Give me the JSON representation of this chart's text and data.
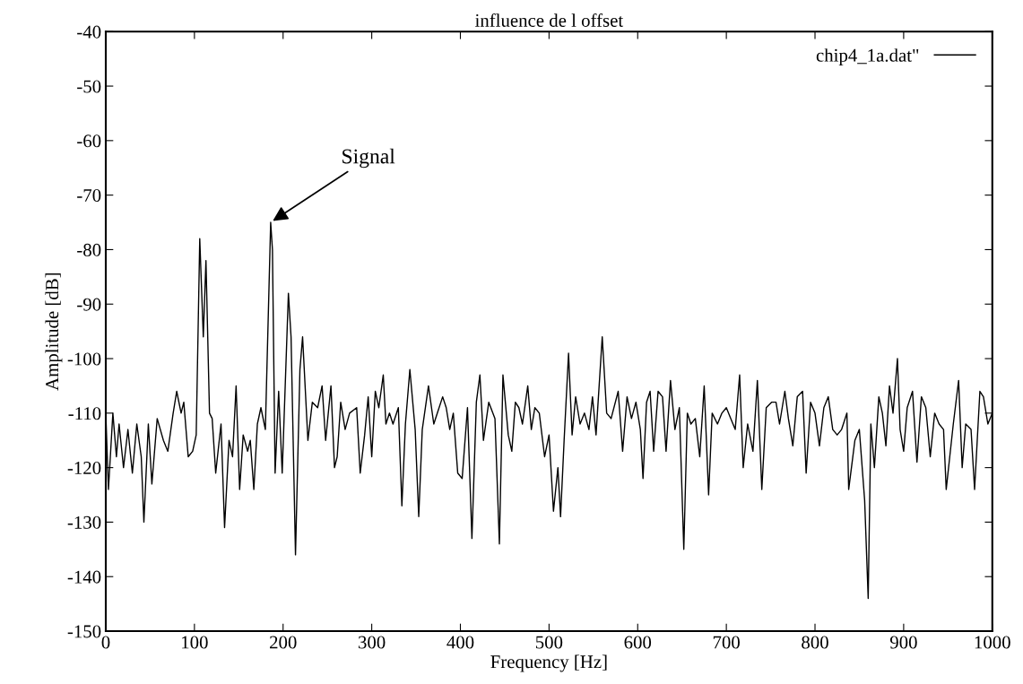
{
  "chart_data": {
    "type": "line",
    "title": "influence de l offset",
    "xlabel": "Frequency [Hz]",
    "ylabel": "Amplitude [dB]",
    "xlim": [
      0,
      1000
    ],
    "xticks": [
      0,
      100,
      200,
      300,
      400,
      500,
      600,
      700,
      800,
      900,
      1000
    ],
    "ylim": [
      -150,
      -40
    ],
    "yticks": [
      -150,
      -140,
      -130,
      -120,
      -110,
      -100,
      -90,
      -80,
      -70,
      -60,
      -50,
      -40
    ],
    "grid": false,
    "legend": "top right",
    "marker": "none",
    "line_style": "solid",
    "annotations": [
      {
        "text": "Signal",
        "x": 186,
        "y": -75
      }
    ],
    "series": [
      {
        "name": "chip4_1a.dat\"",
        "color": "#000000",
        "x": [
          0,
          3,
          8,
          12,
          15,
          20,
          25,
          30,
          35,
          40,
          43,
          48,
          52,
          58,
          65,
          70,
          76,
          80,
          85,
          88,
          93,
          98,
          102,
          106,
          110,
          113,
          117,
          120,
          124,
          130,
          134,
          139,
          143,
          147,
          151,
          155,
          160,
          163,
          167,
          171,
          175,
          180,
          186,
          188,
          191,
          195,
          199,
          206,
          209,
          214,
          219,
          222,
          228,
          233,
          239,
          244,
          248,
          254,
          258,
          261,
          265,
          270,
          275,
          283,
          287,
          292,
          296,
          300,
          304,
          308,
          313,
          316,
          320,
          324,
          330,
          334,
          338,
          343,
          349,
          353,
          357,
          364,
          370,
          374,
          380,
          384,
          388,
          392,
          397,
          402,
          408,
          413,
          418,
          422,
          426,
          432,
          439,
          444,
          448,
          454,
          458,
          462,
          466,
          470,
          476,
          480,
          484,
          489,
          495,
          500,
          505,
          510,
          513,
          517,
          522,
          526,
          530,
          535,
          540,
          545,
          549,
          553,
          560,
          565,
          570,
          578,
          583,
          588,
          593,
          598,
          603,
          606,
          610,
          614,
          618,
          623,
          628,
          632,
          637,
          642,
          647,
          652,
          656,
          660,
          665,
          670,
          675,
          680,
          684,
          690,
          695,
          700,
          705,
          710,
          715,
          719,
          724,
          730,
          735,
          740,
          745,
          751,
          756,
          760,
          766,
          770,
          775,
          780,
          786,
          790,
          795,
          800,
          805,
          810,
          815,
          820,
          825,
          830,
          836,
          838,
          845,
          850,
          856,
          860,
          863,
          867,
          872,
          876,
          880,
          884,
          888,
          893,
          896,
          900,
          904,
          910,
          915,
          920,
          925,
          930,
          935,
          940,
          945,
          948,
          952,
          956,
          962,
          966,
          970,
          976,
          980,
          986,
          990,
          995,
          1000
        ],
        "values": [
          -110,
          -124,
          -110,
          -118,
          -112,
          -120,
          -113,
          -121,
          -112,
          -118,
          -130,
          -112,
          -123,
          -111,
          -115,
          -117,
          -110,
          -106,
          -110,
          -108,
          -118,
          -117,
          -114,
          -78,
          -96,
          -82,
          -110,
          -111,
          -121,
          -112,
          -131,
          -115,
          -118,
          -105,
          -124,
          -114,
          -117,
          -115,
          -124,
          -112,
          -109,
          -113,
          -75,
          -80,
          -121,
          -106,
          -121,
          -88,
          -96,
          -136,
          -102,
          -96,
          -115,
          -108,
          -109,
          -105,
          -115,
          -105,
          -120,
          -118,
          -108,
          -113,
          -110,
          -109,
          -121,
          -114,
          -107,
          -118,
          -106,
          -109,
          -103,
          -112,
          -110,
          -112,
          -109,
          -127,
          -112,
          -102,
          -113,
          -129,
          -113,
          -105,
          -112,
          -110,
          -107,
          -109,
          -113,
          -110,
          -121,
          -122,
          -109,
          -133,
          -108,
          -103,
          -115,
          -108,
          -111,
          -134,
          -103,
          -114,
          -117,
          -108,
          -109,
          -112,
          -105,
          -113,
          -109,
          -110,
          -118,
          -114,
          -128,
          -120,
          -129,
          -115,
          -99,
          -114,
          -107,
          -112,
          -110,
          -113,
          -107,
          -114,
          -96,
          -110,
          -111,
          -106,
          -117,
          -107,
          -111,
          -108,
          -113,
          -122,
          -108,
          -106,
          -117,
          -106,
          -107,
          -117,
          -104,
          -113,
          -109,
          -135,
          -110,
          -112,
          -111,
          -118,
          -105,
          -125,
          -110,
          -112,
          -110,
          -109,
          -111,
          -113,
          -103,
          -120,
          -112,
          -117,
          -104,
          -124,
          -109,
          -108,
          -108,
          -112,
          -106,
          -111,
          -116,
          -107,
          -106,
          -121,
          -108,
          -110,
          -116,
          -109,
          -107,
          -113,
          -114,
          -113,
          -110,
          -124,
          -115,
          -113,
          -126,
          -144,
          -112,
          -120,
          -107,
          -110,
          -116,
          -105,
          -110,
          -100,
          -113,
          -117,
          -109,
          -106,
          -119,
          -107,
          -109,
          -118,
          -110,
          -112,
          -113,
          -124,
          -118,
          -112,
          -104,
          -120,
          -112,
          -113,
          -124,
          -106,
          -107,
          -112,
          -110
        ]
      }
    ]
  }
}
